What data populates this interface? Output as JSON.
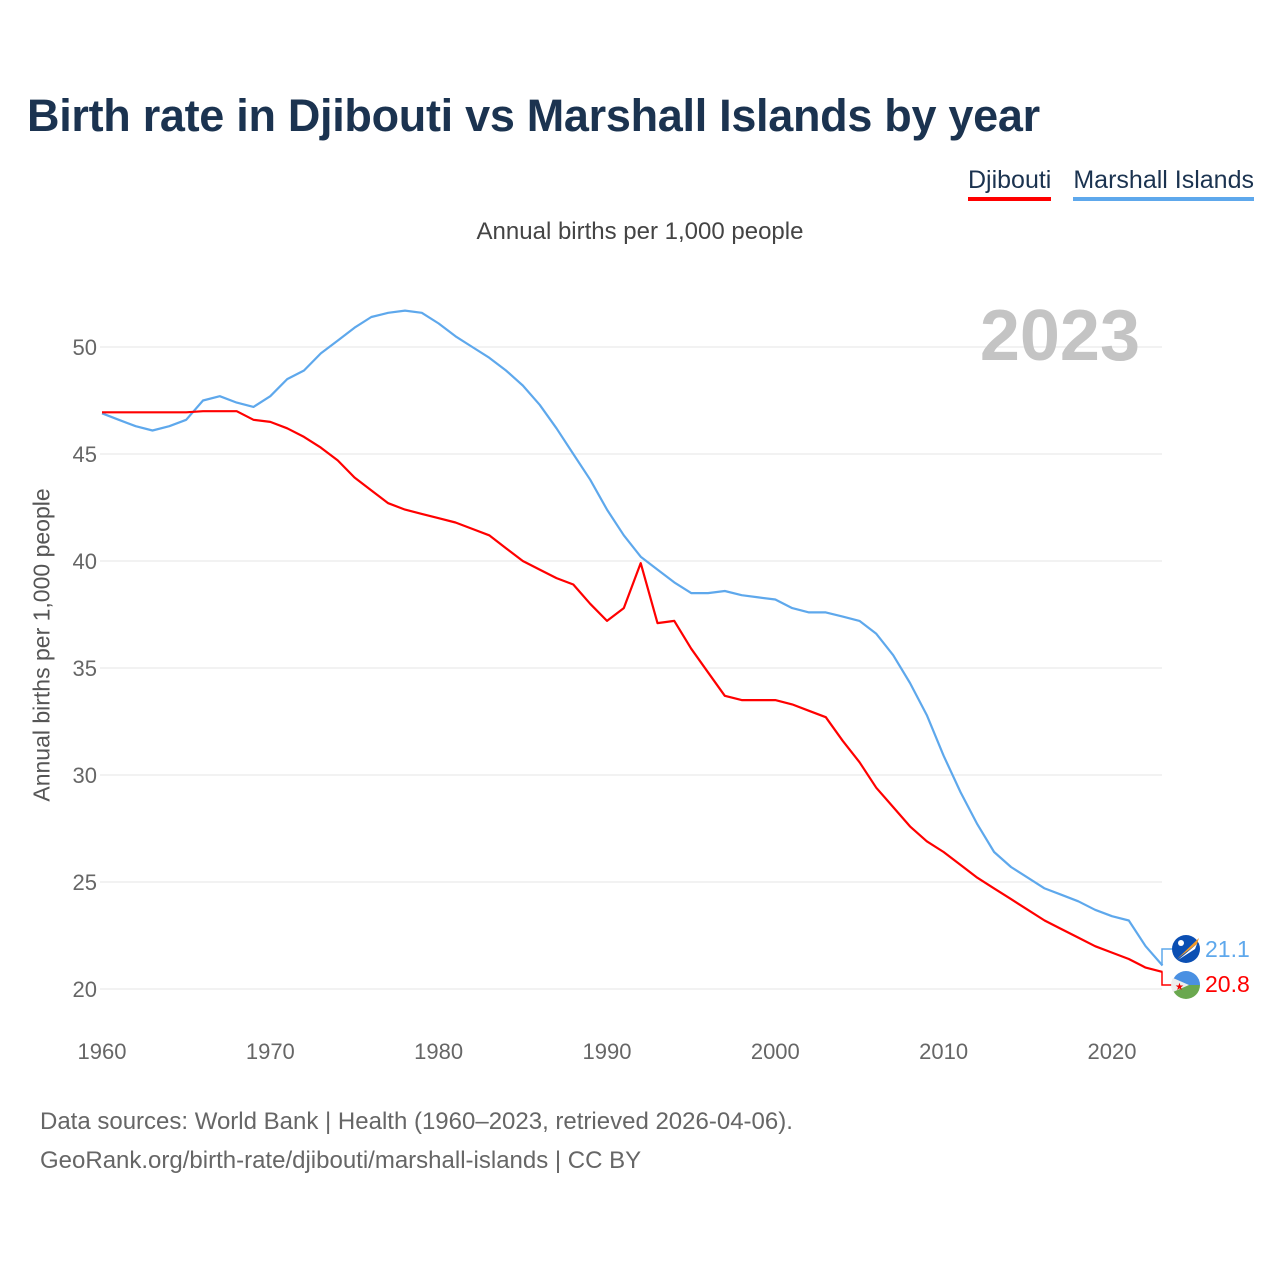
{
  "title": "Birth rate in Djibouti vs Marshall Islands by year",
  "legend": [
    {
      "label": "Djibouti",
      "color": "#ff0000"
    },
    {
      "label": "Marshall Islands",
      "color": "#5ea8ec"
    }
  ],
  "subtitle": "Annual births per 1,000 people",
  "year_label": "2023",
  "source_line1": "Data sources: World Bank | Health (1960–2023, retrieved 2026-04-06).",
  "source_line2": "GeoRank.org/birth-rate/djibouti/marshall-islands | CC BY",
  "chart_data": {
    "type": "line",
    "title": "Birth rate in Djibouti vs Marshall Islands by year",
    "xlabel": "",
    "ylabel": "Annual births per 1,000 people",
    "xlim": [
      1960,
      2023
    ],
    "ylim": [
      18.5,
      52.5
    ],
    "yticks": [
      20,
      25,
      30,
      35,
      40,
      45,
      50
    ],
    "xticks": [
      1960,
      1970,
      1980,
      1990,
      2000,
      2010,
      2020
    ],
    "grid": true,
    "legend_position": "top-right",
    "x_start": 1960,
    "series": [
      {
        "name": "Djibouti",
        "color": "#ff0000",
        "end_label": "20.8",
        "values": [
          46.95,
          46.95,
          46.95,
          46.95,
          46.95,
          46.95,
          47.0,
          47.0,
          47.0,
          46.6,
          46.5,
          46.2,
          45.8,
          45.3,
          44.7,
          43.9,
          43.3,
          42.7,
          42.4,
          42.2,
          42.0,
          41.8,
          41.5,
          41.2,
          40.6,
          40.0,
          39.6,
          39.2,
          38.9,
          38.0,
          37.2,
          37.8,
          39.9,
          37.1,
          37.2,
          35.9,
          34.8,
          33.7,
          33.5,
          33.5,
          33.5,
          33.3,
          33.0,
          32.7,
          31.6,
          30.6,
          29.4,
          28.5,
          27.6,
          26.9,
          26.4,
          25.8,
          25.2,
          24.7,
          24.2,
          23.7,
          23.2,
          22.8,
          22.4,
          22.0,
          21.7,
          21.4,
          21.0,
          20.8
        ]
      },
      {
        "name": "Marshall Islands",
        "color": "#5ea8ec",
        "end_label": "21.1",
        "values": [
          46.9,
          46.6,
          46.3,
          46.1,
          46.3,
          46.6,
          47.5,
          47.7,
          47.4,
          47.2,
          47.7,
          48.5,
          48.9,
          49.7,
          50.3,
          50.9,
          51.4,
          51.6,
          51.7,
          51.6,
          51.1,
          50.5,
          50.0,
          49.5,
          48.9,
          48.2,
          47.3,
          46.2,
          45.0,
          43.8,
          42.4,
          41.2,
          40.2,
          39.6,
          39.0,
          38.5,
          38.5,
          38.6,
          38.4,
          38.3,
          38.2,
          37.8,
          37.6,
          37.6,
          37.4,
          37.2,
          36.6,
          35.6,
          34.3,
          32.8,
          30.9,
          29.2,
          27.7,
          26.4,
          25.7,
          25.2,
          24.7,
          24.4,
          24.1,
          23.7,
          23.4,
          23.2,
          22.0,
          21.1
        ]
      }
    ]
  }
}
